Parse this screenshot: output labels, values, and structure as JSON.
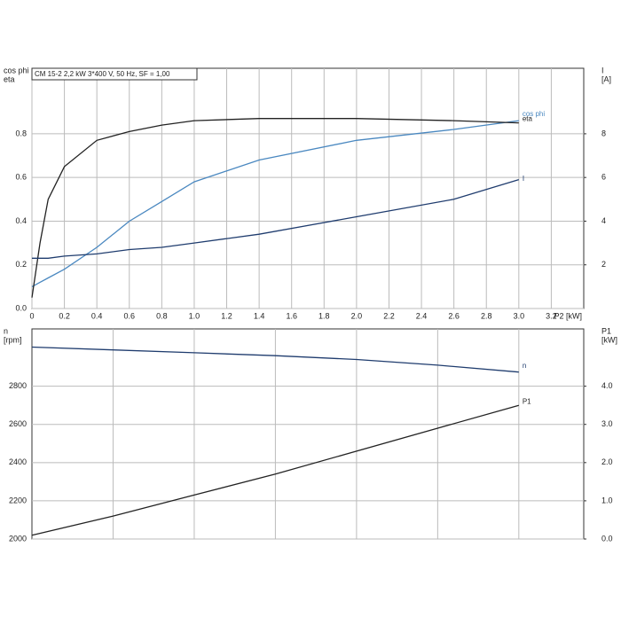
{
  "chart_data": [
    {
      "type": "line",
      "title": "CM 15-2  2,2 kW  3*400 V, 50 Hz, SF = 1,00",
      "xlabel": "P2 [kW]",
      "ylabel": [
        "cos phi",
        "eta"
      ],
      "y2label": [
        "I",
        "[A]"
      ],
      "x": [
        0,
        0.05,
        0.1,
        0.2,
        0.4,
        0.6,
        0.8,
        1.0,
        1.4,
        2.0,
        2.6,
        3.0
      ],
      "xlim": [
        0,
        3.4
      ],
      "xticks": [
        0,
        0.2,
        0.4,
        0.6,
        0.8,
        {
          "value": 1,
          "label": "1.0"
        },
        1.2,
        1.4,
        1.6,
        1.8,
        {
          "value": 2,
          "label": "2.0"
        },
        2.2,
        2.4,
        2.6,
        2.8,
        {
          "value": 3,
          "label": "3.0"
        },
        3.2
      ],
      "ylim": [
        0,
        1.1
      ],
      "yticks": [
        {
          "value": 0,
          "label": "0.0"
        },
        0.2,
        0.4,
        0.6,
        0.8
      ],
      "y2lim": [
        0,
        11
      ],
      "y2ticks": [
        2,
        4,
        6,
        8
      ],
      "grid": true,
      "series": [
        {
          "name": "cos phi",
          "color": "#4a88c0",
          "values": [
            0.1,
            0.12,
            0.14,
            0.18,
            0.28,
            0.4,
            0.49,
            0.58,
            0.68,
            0.77,
            0.82,
            0.86
          ]
        },
        {
          "name": "eta",
          "color": "#222222",
          "values": [
            0.05,
            0.3,
            0.5,
            0.65,
            0.77,
            0.81,
            0.84,
            0.86,
            0.87,
            0.87,
            0.86,
            0.85
          ]
        },
        {
          "name": "I",
          "color": "#1f3c6e",
          "axis": "y2",
          "values": [
            2.3,
            2.3,
            2.3,
            2.4,
            2.5,
            2.7,
            2.8,
            3.0,
            3.4,
            4.2,
            5.0,
            5.9
          ]
        }
      ]
    },
    {
      "type": "line",
      "ylabel": [
        "n",
        "[rpm]"
      ],
      "y2label": [
        "P1",
        "[kW]"
      ],
      "x": [
        0,
        0.5,
        1,
        1.5,
        2,
        2.5,
        3
      ],
      "xlim": [
        0,
        3.4
      ],
      "xticks": [
        0.5,
        1,
        1.5,
        2,
        2.5,
        3
      ],
      "ylim": [
        2000,
        3100
      ],
      "yticks": [
        2000,
        2200,
        2400,
        2600,
        2800
      ],
      "y2lim": [
        0,
        5.5
      ],
      "y2ticks": [
        {
          "value": 0,
          "label": "0.0"
        },
        {
          "value": 1,
          "label": "1.0"
        },
        {
          "value": 2,
          "label": "2.0"
        },
        {
          "value": 3,
          "label": "3.0"
        },
        {
          "value": 4,
          "label": "4.0"
        }
      ],
      "grid": true,
      "series": [
        {
          "name": "n",
          "color": "#1f3c6e",
          "values": [
            3005,
            2990,
            2975,
            2960,
            2940,
            2910,
            2874
          ]
        },
        {
          "name": "P1",
          "color": "#222222",
          "axis": "y2",
          "values": [
            0.1,
            0.6,
            1.15,
            1.7,
            2.3,
            2.9,
            3.5
          ]
        }
      ]
    }
  ]
}
